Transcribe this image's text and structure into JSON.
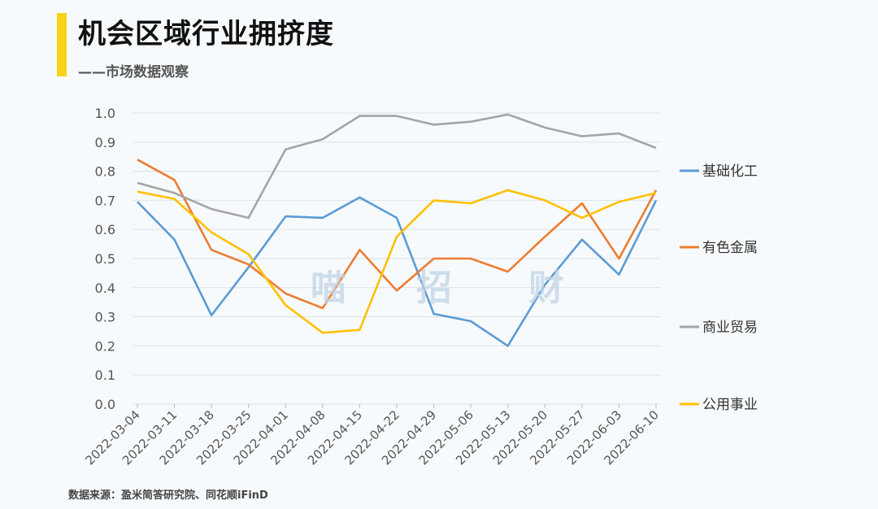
{
  "header": {
    "title": "机会区域行业拥挤度",
    "subtitle": "——市场数据观察"
  },
  "footer": {
    "source": "数据来源：盈米简答研究院、同花顺iFinD"
  },
  "watermark": [
    "喵",
    "招",
    "财"
  ],
  "colors": {
    "accent": "#f9d21a",
    "grid": "#dde2e8"
  },
  "chart_data": {
    "type": "line",
    "x": [
      "2022-03-04",
      "2022-03-11",
      "2022-03-18",
      "2022-03-25",
      "2022-04-01",
      "2022-04-08",
      "2022-04-15",
      "2022-04-22",
      "2022-04-29",
      "2022-05-06",
      "2022-05-13",
      "2022-05-20",
      "2022-05-27",
      "2022-06-03",
      "2022-06-10"
    ],
    "yticks": [
      "0.0",
      "0.1",
      "0.2",
      "0.3",
      "0.4",
      "0.5",
      "0.6",
      "0.7",
      "0.8",
      "0.9",
      "1.0"
    ],
    "ylim": [
      0,
      1.0
    ],
    "grid": true,
    "legend_position": "right",
    "series": [
      {
        "name": "基础化工",
        "color": "#5b9bd5",
        "values": [
          0.695,
          0.565,
          0.305,
          0.47,
          0.645,
          0.64,
          0.71,
          0.64,
          0.31,
          0.285,
          0.2,
          0.41,
          0.565,
          0.445,
          0.7
        ]
      },
      {
        "name": "有色金属",
        "color": "#ed7d31",
        "values": [
          0.84,
          0.77,
          0.53,
          0.48,
          0.38,
          0.33,
          0.53,
          0.39,
          0.5,
          0.5,
          0.455,
          0.575,
          0.69,
          0.5,
          0.735
        ]
      },
      {
        "name": "商业贸易",
        "color": "#a5a5a5",
        "values": [
          0.76,
          0.725,
          0.67,
          0.64,
          0.875,
          0.91,
          0.99,
          0.99,
          0.96,
          0.97,
          0.995,
          0.95,
          0.92,
          0.93,
          0.88
        ]
      },
      {
        "name": "公用事业",
        "color": "#ffc000",
        "values": [
          0.73,
          0.705,
          0.59,
          0.515,
          0.34,
          0.245,
          0.255,
          0.575,
          0.7,
          0.69,
          0.735,
          0.7,
          0.64,
          0.695,
          0.725
        ]
      }
    ]
  }
}
